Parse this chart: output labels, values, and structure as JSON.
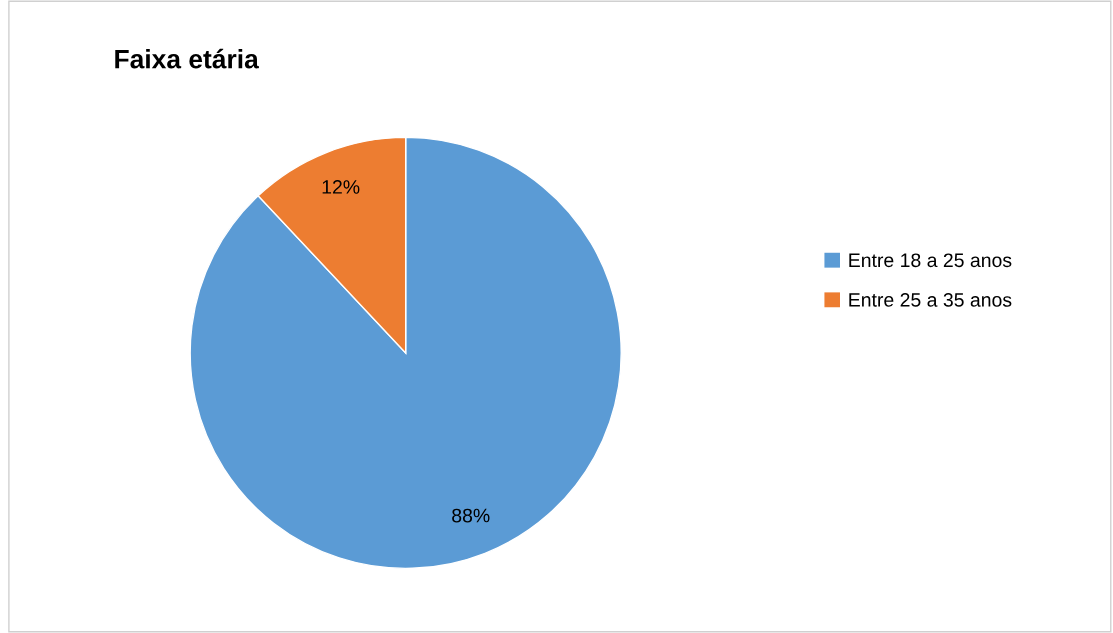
{
  "chart_data": {
    "type": "pie",
    "title": "Faixa etária",
    "categories": [
      "Entre 18 a 25 anos",
      "Entre 25 a 35 anos"
    ],
    "values": [
      88,
      12
    ],
    "colors": [
      "#5b9bd5",
      "#ed7d31"
    ],
    "value_labels": [
      "88%",
      "12%"
    ],
    "legend": "right"
  }
}
